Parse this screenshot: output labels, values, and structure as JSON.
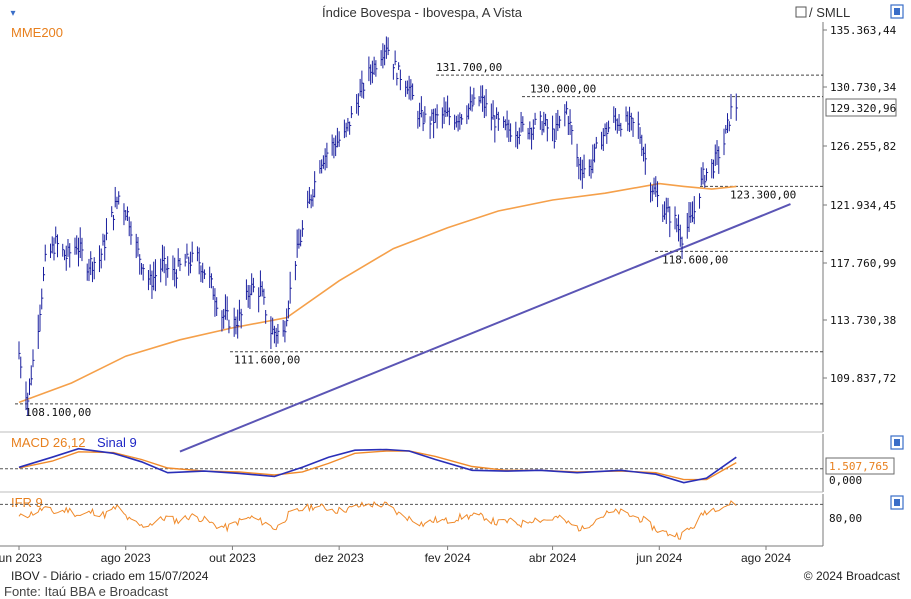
{
  "chart_data": {
    "type": "line",
    "title": "Índice Bovespa - Ibovespa, A Vista",
    "toolbar": {
      "scale_label": "/ SMLL"
    },
    "main_panel": {
      "ma_label": "MME200",
      "ylim": [
        107000,
        136200
      ],
      "y_ticks": [
        135363.44,
        130730.34,
        126255.82,
        121934.45,
        117760.99,
        113730.38,
        109837.72
      ],
      "y_tick_labels": [
        "135.363,44",
        "130.730,34",
        "126.255,82",
        "121.934,45",
        "117.760,99",
        "113.730,38",
        "109.837,72"
      ],
      "last_value_label": "129.320,96",
      "last_value": 129320.96,
      "levels": [
        {
          "label": "131.700,00",
          "value": 131700
        },
        {
          "label": "130.000,00",
          "value": 130000
        },
        {
          "label": "123.300,00",
          "value": 123300
        },
        {
          "label": "118.600,00",
          "value": 118600
        },
        {
          "label": "111.600,00",
          "value": 111600
        },
        {
          "label": "108.100,00",
          "value": 108100
        }
      ],
      "trendline": {
        "start": {
          "x": "2023-09-01",
          "y": 104900
        },
        "end": {
          "x": "2024-08-15",
          "y": 122000
        }
      },
      "price_points": [
        [
          "2023-06-01",
          111500
        ],
        [
          "2023-06-06",
          108400
        ],
        [
          "2023-06-12",
          113500
        ],
        [
          "2023-06-16",
          117800
        ],
        [
          "2023-06-22",
          119200
        ],
        [
          "2023-06-28",
          118200
        ],
        [
          "2023-07-04",
          119100
        ],
        [
          "2023-07-10",
          117700
        ],
        [
          "2023-07-17",
          118000
        ],
        [
          "2023-07-24",
          121000
        ],
        [
          "2023-07-28",
          122600
        ],
        [
          "2023-08-02",
          121300
        ],
        [
          "2023-08-08",
          118500
        ],
        [
          "2023-08-15",
          116400
        ],
        [
          "2023-08-22",
          117600
        ],
        [
          "2023-08-28",
          117000
        ],
        [
          "2023-09-04",
          117800
        ],
        [
          "2023-09-11",
          118100
        ],
        [
          "2023-09-18",
          116500
        ],
        [
          "2023-09-25",
          114100
        ],
        [
          "2023-10-02",
          113500
        ],
        [
          "2023-10-06",
          114000
        ],
        [
          "2023-10-11",
          116000
        ],
        [
          "2023-10-17",
          115800
        ],
        [
          "2023-10-23",
          113000
        ],
        [
          "2023-10-30",
          112800
        ],
        [
          "2023-11-06",
          118000
        ],
        [
          "2023-11-13",
          121600
        ],
        [
          "2023-11-20",
          125100
        ],
        [
          "2023-11-27",
          126300
        ],
        [
          "2023-12-04",
          127000
        ],
        [
          "2023-12-11",
          129500
        ],
        [
          "2023-12-18",
          131800
        ],
        [
          "2023-12-22",
          132700
        ],
        [
          "2023-12-28",
          134200
        ],
        [
          "2024-01-03",
          132000
        ],
        [
          "2024-01-09",
          131000
        ],
        [
          "2024-01-16",
          128400
        ],
        [
          "2024-01-23",
          128200
        ],
        [
          "2024-01-30",
          128600
        ],
        [
          "2024-02-06",
          128400
        ],
        [
          "2024-02-14",
          129200
        ],
        [
          "2024-02-20",
          129800
        ],
        [
          "2024-02-27",
          128300
        ],
        [
          "2024-03-05",
          127500
        ],
        [
          "2024-03-12",
          127500
        ],
        [
          "2024-03-19",
          127700
        ],
        [
          "2024-03-26",
          128000
        ],
        [
          "2024-04-02",
          127100
        ],
        [
          "2024-04-09",
          129000
        ],
        [
          "2024-04-16",
          124800
        ],
        [
          "2024-04-22",
          124600
        ],
        [
          "2024-04-29",
          126900
        ],
        [
          "2024-05-06",
          128200
        ],
        [
          "2024-05-13",
          128000
        ],
        [
          "2024-05-20",
          127700
        ],
        [
          "2024-05-27",
          123500
        ],
        [
          "2024-06-03",
          121700
        ],
        [
          "2024-06-10",
          120800
        ],
        [
          "2024-06-14",
          119700
        ],
        [
          "2024-06-20",
          121000
        ],
        [
          "2024-06-26",
          124000
        ],
        [
          "2024-07-02",
          124900
        ],
        [
          "2024-07-08",
          126500
        ],
        [
          "2024-07-12",
          128900
        ],
        [
          "2024-07-15",
          129321
        ]
      ],
      "ema200_points": [
        [
          "2023-06-01",
          108200
        ],
        [
          "2023-07-01",
          109500
        ],
        [
          "2023-08-01",
          111300
        ],
        [
          "2023-09-01",
          112400
        ],
        [
          "2023-10-01",
          113200
        ],
        [
          "2023-11-01",
          113900
        ],
        [
          "2023-12-01",
          116500
        ],
        [
          "2024-01-01",
          118800
        ],
        [
          "2024-02-01",
          120300
        ],
        [
          "2024-03-01",
          121500
        ],
        [
          "2024-04-01",
          122300
        ],
        [
          "2024-05-01",
          122800
        ],
        [
          "2024-06-01",
          123500
        ],
        [
          "2024-06-15",
          123300
        ],
        [
          "2024-07-01",
          123100
        ],
        [
          "2024-07-15",
          123300
        ]
      ]
    },
    "macd_panel": {
      "label": "MACD 26,12",
      "signal_label": "Sinal 9",
      "zero_label": "0,000",
      "last_value_label": "1.507,765",
      "ylim": [
        -3000,
        4500
      ],
      "macd_points": [
        [
          "2023-06-01",
          200
        ],
        [
          "2023-06-20",
          1500
        ],
        [
          "2023-07-05",
          2600
        ],
        [
          "2023-07-25",
          2000
        ],
        [
          "2023-08-10",
          900
        ],
        [
          "2023-08-25",
          -500
        ],
        [
          "2023-09-15",
          -300
        ],
        [
          "2023-10-05",
          -600
        ],
        [
          "2023-10-25",
          -1000
        ],
        [
          "2023-11-10",
          200
        ],
        [
          "2023-11-25",
          1500
        ],
        [
          "2023-12-10",
          2400
        ],
        [
          "2023-12-28",
          2500
        ],
        [
          "2024-01-10",
          2300
        ],
        [
          "2024-01-25",
          1200
        ],
        [
          "2024-02-15",
          -200
        ],
        [
          "2024-03-05",
          -300
        ],
        [
          "2024-03-25",
          -200
        ],
        [
          "2024-04-15",
          -500
        ],
        [
          "2024-05-10",
          -200
        ],
        [
          "2024-05-30",
          -700
        ],
        [
          "2024-06-15",
          -1800
        ],
        [
          "2024-06-28",
          -1200
        ],
        [
          "2024-07-15",
          1500
        ]
      ],
      "signal_points": [
        [
          "2023-06-01",
          100
        ],
        [
          "2023-06-20",
          1000
        ],
        [
          "2023-07-05",
          2200
        ],
        [
          "2023-07-25",
          2100
        ],
        [
          "2023-08-10",
          1200
        ],
        [
          "2023-08-25",
          100
        ],
        [
          "2023-09-15",
          -300
        ],
        [
          "2023-10-05",
          -400
        ],
        [
          "2023-10-25",
          -800
        ],
        [
          "2023-11-10",
          -400
        ],
        [
          "2023-11-25",
          700
        ],
        [
          "2023-12-10",
          2000
        ],
        [
          "2023-12-28",
          2300
        ],
        [
          "2024-01-10",
          2300
        ],
        [
          "2024-01-25",
          1600
        ],
        [
          "2024-02-15",
          300
        ],
        [
          "2024-03-05",
          -200
        ],
        [
          "2024-03-25",
          -200
        ],
        [
          "2024-04-15",
          -400
        ],
        [
          "2024-05-10",
          -300
        ],
        [
          "2024-05-30",
          -500
        ],
        [
          "2024-06-15",
          -1400
        ],
        [
          "2024-06-28",
          -1400
        ],
        [
          "2024-07-15",
          800
        ]
      ]
    },
    "rsi_panel": {
      "label": "IFR 9",
      "level_label": "80,00",
      "level": 80,
      "ylim": [
        0,
        100
      ],
      "rsi_points": [
        [
          "2023-06-01",
          55
        ],
        [
          "2023-06-08",
          62
        ],
        [
          "2023-06-15",
          72
        ],
        [
          "2023-06-22",
          64
        ],
        [
          "2023-06-29",
          70
        ],
        [
          "2023-07-06",
          58
        ],
        [
          "2023-07-13",
          66
        ],
        [
          "2023-07-20",
          60
        ],
        [
          "2023-07-27",
          75
        ],
        [
          "2023-08-03",
          50
        ],
        [
          "2023-08-10",
          38
        ],
        [
          "2023-08-17",
          45
        ],
        [
          "2023-08-24",
          55
        ],
        [
          "2023-08-31",
          48
        ],
        [
          "2023-09-07",
          58
        ],
        [
          "2023-09-14",
          52
        ],
        [
          "2023-09-21",
          40
        ],
        [
          "2023-09-28",
          35
        ],
        [
          "2023-10-05",
          48
        ],
        [
          "2023-10-12",
          55
        ],
        [
          "2023-10-19",
          45
        ],
        [
          "2023-10-26",
          33
        ],
        [
          "2023-11-02",
          60
        ],
        [
          "2023-11-09",
          70
        ],
        [
          "2023-11-16",
          76
        ],
        [
          "2023-11-23",
          74
        ],
        [
          "2023-11-30",
          68
        ],
        [
          "2023-12-07",
          72
        ],
        [
          "2023-12-14",
          78
        ],
        [
          "2023-12-21",
          80
        ],
        [
          "2023-12-28",
          79
        ],
        [
          "2024-01-04",
          62
        ],
        [
          "2024-01-11",
          52
        ],
        [
          "2024-01-18",
          42
        ],
        [
          "2024-01-25",
          50
        ],
        [
          "2024-02-01",
          48
        ],
        [
          "2024-02-08",
          55
        ],
        [
          "2024-02-15",
          58
        ],
        [
          "2024-02-22",
          56
        ],
        [
          "2024-02-29",
          44
        ],
        [
          "2024-03-07",
          48
        ],
        [
          "2024-03-14",
          42
        ],
        [
          "2024-03-21",
          52
        ],
        [
          "2024-03-28",
          50
        ],
        [
          "2024-04-04",
          55
        ],
        [
          "2024-04-11",
          42
        ],
        [
          "2024-04-18",
          32
        ],
        [
          "2024-04-25",
          50
        ],
        [
          "2024-05-02",
          62
        ],
        [
          "2024-05-09",
          66
        ],
        [
          "2024-05-16",
          58
        ],
        [
          "2024-05-23",
          50
        ],
        [
          "2024-05-30",
          32
        ],
        [
          "2024-06-06",
          24
        ],
        [
          "2024-06-13",
          20
        ],
        [
          "2024-06-20",
          36
        ],
        [
          "2024-06-27",
          66
        ],
        [
          "2024-07-04",
          74
        ],
        [
          "2024-07-11",
          80
        ],
        [
          "2024-07-15",
          82
        ]
      ]
    },
    "x_ticks": [
      {
        "date": "2023-06-01",
        "label": "jun 2023"
      },
      {
        "date": "2023-08-01",
        "label": "ago 2023"
      },
      {
        "date": "2023-10-01",
        "label": "out 2023"
      },
      {
        "date": "2023-12-01",
        "label": "dez 2023"
      },
      {
        "date": "2024-02-01",
        "label": "fev 2024"
      },
      {
        "date": "2024-04-01",
        "label": "abr 2024"
      },
      {
        "date": "2024-06-01",
        "label": "jun 2024"
      },
      {
        "date": "2024-08-01",
        "label": "ago 2024"
      }
    ],
    "footer": {
      "left": "IBOV - Diário - criado em 15/07/2024",
      "right": "© 2024 Broadcast",
      "source": "Fonte: Itaú BBA e Broadcast"
    },
    "colors": {
      "price": "#1a1f9e",
      "ema": "#f5a04a",
      "trendline": "#5b55b5",
      "macd": "#2a2fb8",
      "signal": "#f08a2a",
      "rsi": "#f08a2a",
      "label_orange": "#e8801e",
      "label_blue": "#1f27c6",
      "axis_line": "#7a7a7a",
      "icon_blue": "#3a6ec8"
    }
  }
}
